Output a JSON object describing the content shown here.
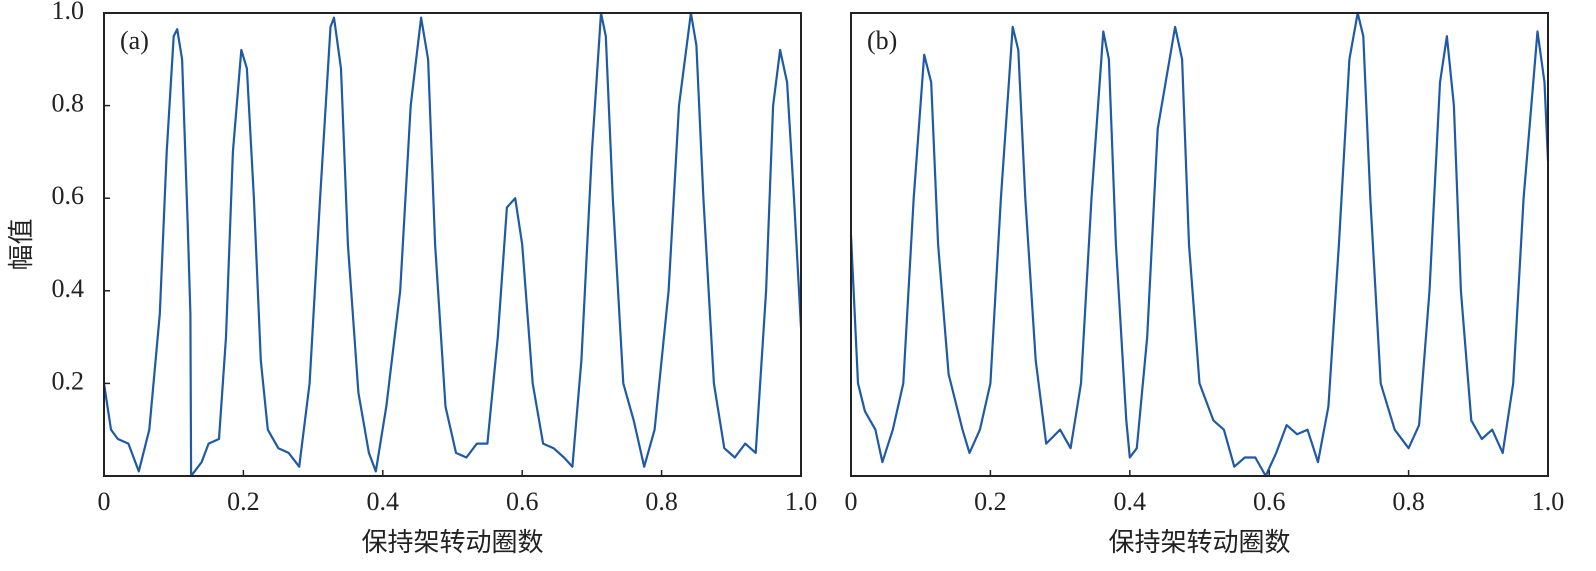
{
  "chart_data": [
    {
      "type": "line",
      "label": "(a)",
      "xlabel": "保持架转动圈数",
      "ylabel": "幅值",
      "color": "#1f5aa6",
      "xlim": [
        0,
        1
      ],
      "ylim": [
        0,
        1
      ],
      "xticks": [
        0,
        0.2,
        0.4,
        0.6,
        0.8,
        {
          "value": 1,
          "label": "1.0"
        }
      ],
      "yticks": [
        0.2,
        0.4,
        0.6,
        0.8,
        {
          "value": 1,
          "label": "1.0"
        }
      ],
      "x": [
        0,
        0.01,
        0.02,
        0.035,
        0.05,
        0.065,
        0.08,
        0.09,
        0.1,
        0.105,
        0.112,
        0.12,
        0.124,
        0.125,
        0.13,
        0.14,
        0.15,
        0.165,
        0.175,
        0.185,
        0.197,
        0.205,
        0.215,
        0.225,
        0.235,
        0.25,
        0.265,
        0.28,
        0.295,
        0.31,
        0.325,
        0.33,
        0.34,
        0.35,
        0.365,
        0.38,
        0.39,
        0.405,
        0.425,
        0.44,
        0.455,
        0.465,
        0.475,
        0.49,
        0.505,
        0.52,
        0.535,
        0.55,
        0.565,
        0.578,
        0.59,
        0.6,
        0.615,
        0.63,
        0.645,
        0.66,
        0.672,
        0.685,
        0.7,
        0.713,
        0.72,
        0.73,
        0.745,
        0.76,
        0.775,
        0.79,
        0.81,
        0.825,
        0.842,
        0.85,
        0.86,
        0.875,
        0.89,
        0.905,
        0.92,
        0.935,
        0.95,
        0.96,
        0.97,
        0.98,
        0.99,
        1.0
      ],
      "values": [
        0.2,
        0.1,
        0.08,
        0.07,
        0.01,
        0.1,
        0.35,
        0.7,
        0.95,
        0.965,
        0.9,
        0.55,
        0.35,
        0.0,
        0.01,
        0.03,
        0.07,
        0.08,
        0.3,
        0.7,
        0.92,
        0.88,
        0.6,
        0.25,
        0.1,
        0.06,
        0.05,
        0.02,
        0.2,
        0.6,
        0.97,
        0.99,
        0.88,
        0.5,
        0.18,
        0.05,
        0.01,
        0.15,
        0.4,
        0.8,
        0.99,
        0.9,
        0.5,
        0.15,
        0.05,
        0.04,
        0.07,
        0.07,
        0.3,
        0.58,
        0.6,
        0.5,
        0.2,
        0.07,
        0.06,
        0.04,
        0.02,
        0.25,
        0.7,
        1.0,
        0.95,
        0.6,
        0.2,
        0.12,
        0.02,
        0.1,
        0.4,
        0.8,
        1.0,
        0.93,
        0.6,
        0.2,
        0.06,
        0.04,
        0.07,
        0.05,
        0.4,
        0.8,
        0.92,
        0.85,
        0.6,
        0.32
      ]
    },
    {
      "type": "line",
      "label": "(b)",
      "xlabel": "保持架转动圈数",
      "color": "#1f5aa6",
      "xlim": [
        0,
        1
      ],
      "ylim": [
        0,
        1
      ],
      "xticks": [
        0,
        0.2,
        0.4,
        0.6,
        0.8,
        {
          "value": 1,
          "label": "1.0"
        }
      ],
      "x": [
        0,
        0.01,
        0.02,
        0.035,
        0.045,
        0.06,
        0.075,
        0.09,
        0.105,
        0.115,
        0.125,
        0.14,
        0.16,
        0.17,
        0.185,
        0.2,
        0.215,
        0.232,
        0.24,
        0.25,
        0.265,
        0.28,
        0.3,
        0.315,
        0.33,
        0.345,
        0.362,
        0.37,
        0.38,
        0.395,
        0.4,
        0.41,
        0.425,
        0.44,
        0.465,
        0.475,
        0.485,
        0.5,
        0.52,
        0.535,
        0.55,
        0.565,
        0.58,
        0.595,
        0.61,
        0.625,
        0.64,
        0.655,
        0.67,
        0.685,
        0.7,
        0.715,
        0.727,
        0.735,
        0.745,
        0.76,
        0.78,
        0.8,
        0.815,
        0.83,
        0.845,
        0.855,
        0.865,
        0.875,
        0.89,
        0.905,
        0.92,
        0.935,
        0.95,
        0.965,
        0.985,
        0.995,
        1.0
      ],
      "values": [
        0.52,
        0.2,
        0.14,
        0.1,
        0.03,
        0.1,
        0.2,
        0.6,
        0.91,
        0.85,
        0.5,
        0.22,
        0.1,
        0.05,
        0.1,
        0.2,
        0.6,
        0.97,
        0.92,
        0.6,
        0.25,
        0.07,
        0.1,
        0.06,
        0.2,
        0.6,
        0.96,
        0.9,
        0.5,
        0.12,
        0.04,
        0.06,
        0.3,
        0.75,
        0.97,
        0.9,
        0.5,
        0.2,
        0.12,
        0.1,
        0.02,
        0.04,
        0.04,
        0.0,
        0.05,
        0.11,
        0.09,
        0.1,
        0.03,
        0.15,
        0.5,
        0.9,
        1.0,
        0.95,
        0.6,
        0.2,
        0.1,
        0.06,
        0.11,
        0.4,
        0.85,
        0.95,
        0.8,
        0.4,
        0.12,
        0.08,
        0.1,
        0.05,
        0.2,
        0.6,
        0.96,
        0.85,
        0.68
      ]
    }
  ]
}
